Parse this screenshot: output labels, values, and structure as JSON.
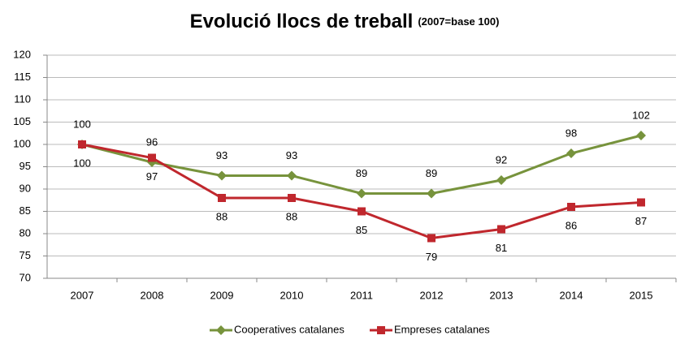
{
  "chart_data": {
    "type": "line",
    "title": "Evolució llocs de treball",
    "subtitle": "(2007=base 100)",
    "categories": [
      "2007",
      "2008",
      "2009",
      "2010",
      "2011",
      "2012",
      "2013",
      "2014",
      "2015"
    ],
    "series": [
      {
        "name": "Cooperatives catalanes",
        "color": "#77933c",
        "marker": "diamond",
        "values": [
          100,
          96,
          93,
          93,
          89,
          89,
          92,
          98,
          102
        ]
      },
      {
        "name": "Empreses catalanes",
        "color": "#c0272d",
        "marker": "square",
        "values": [
          100,
          97,
          88,
          88,
          85,
          79,
          81,
          86,
          87
        ]
      }
    ],
    "ylim": [
      70,
      120
    ],
    "yticks": [
      70,
      75,
      80,
      85,
      90,
      95,
      100,
      105,
      110,
      115,
      120
    ],
    "grid": true,
    "legend": "bottom"
  }
}
